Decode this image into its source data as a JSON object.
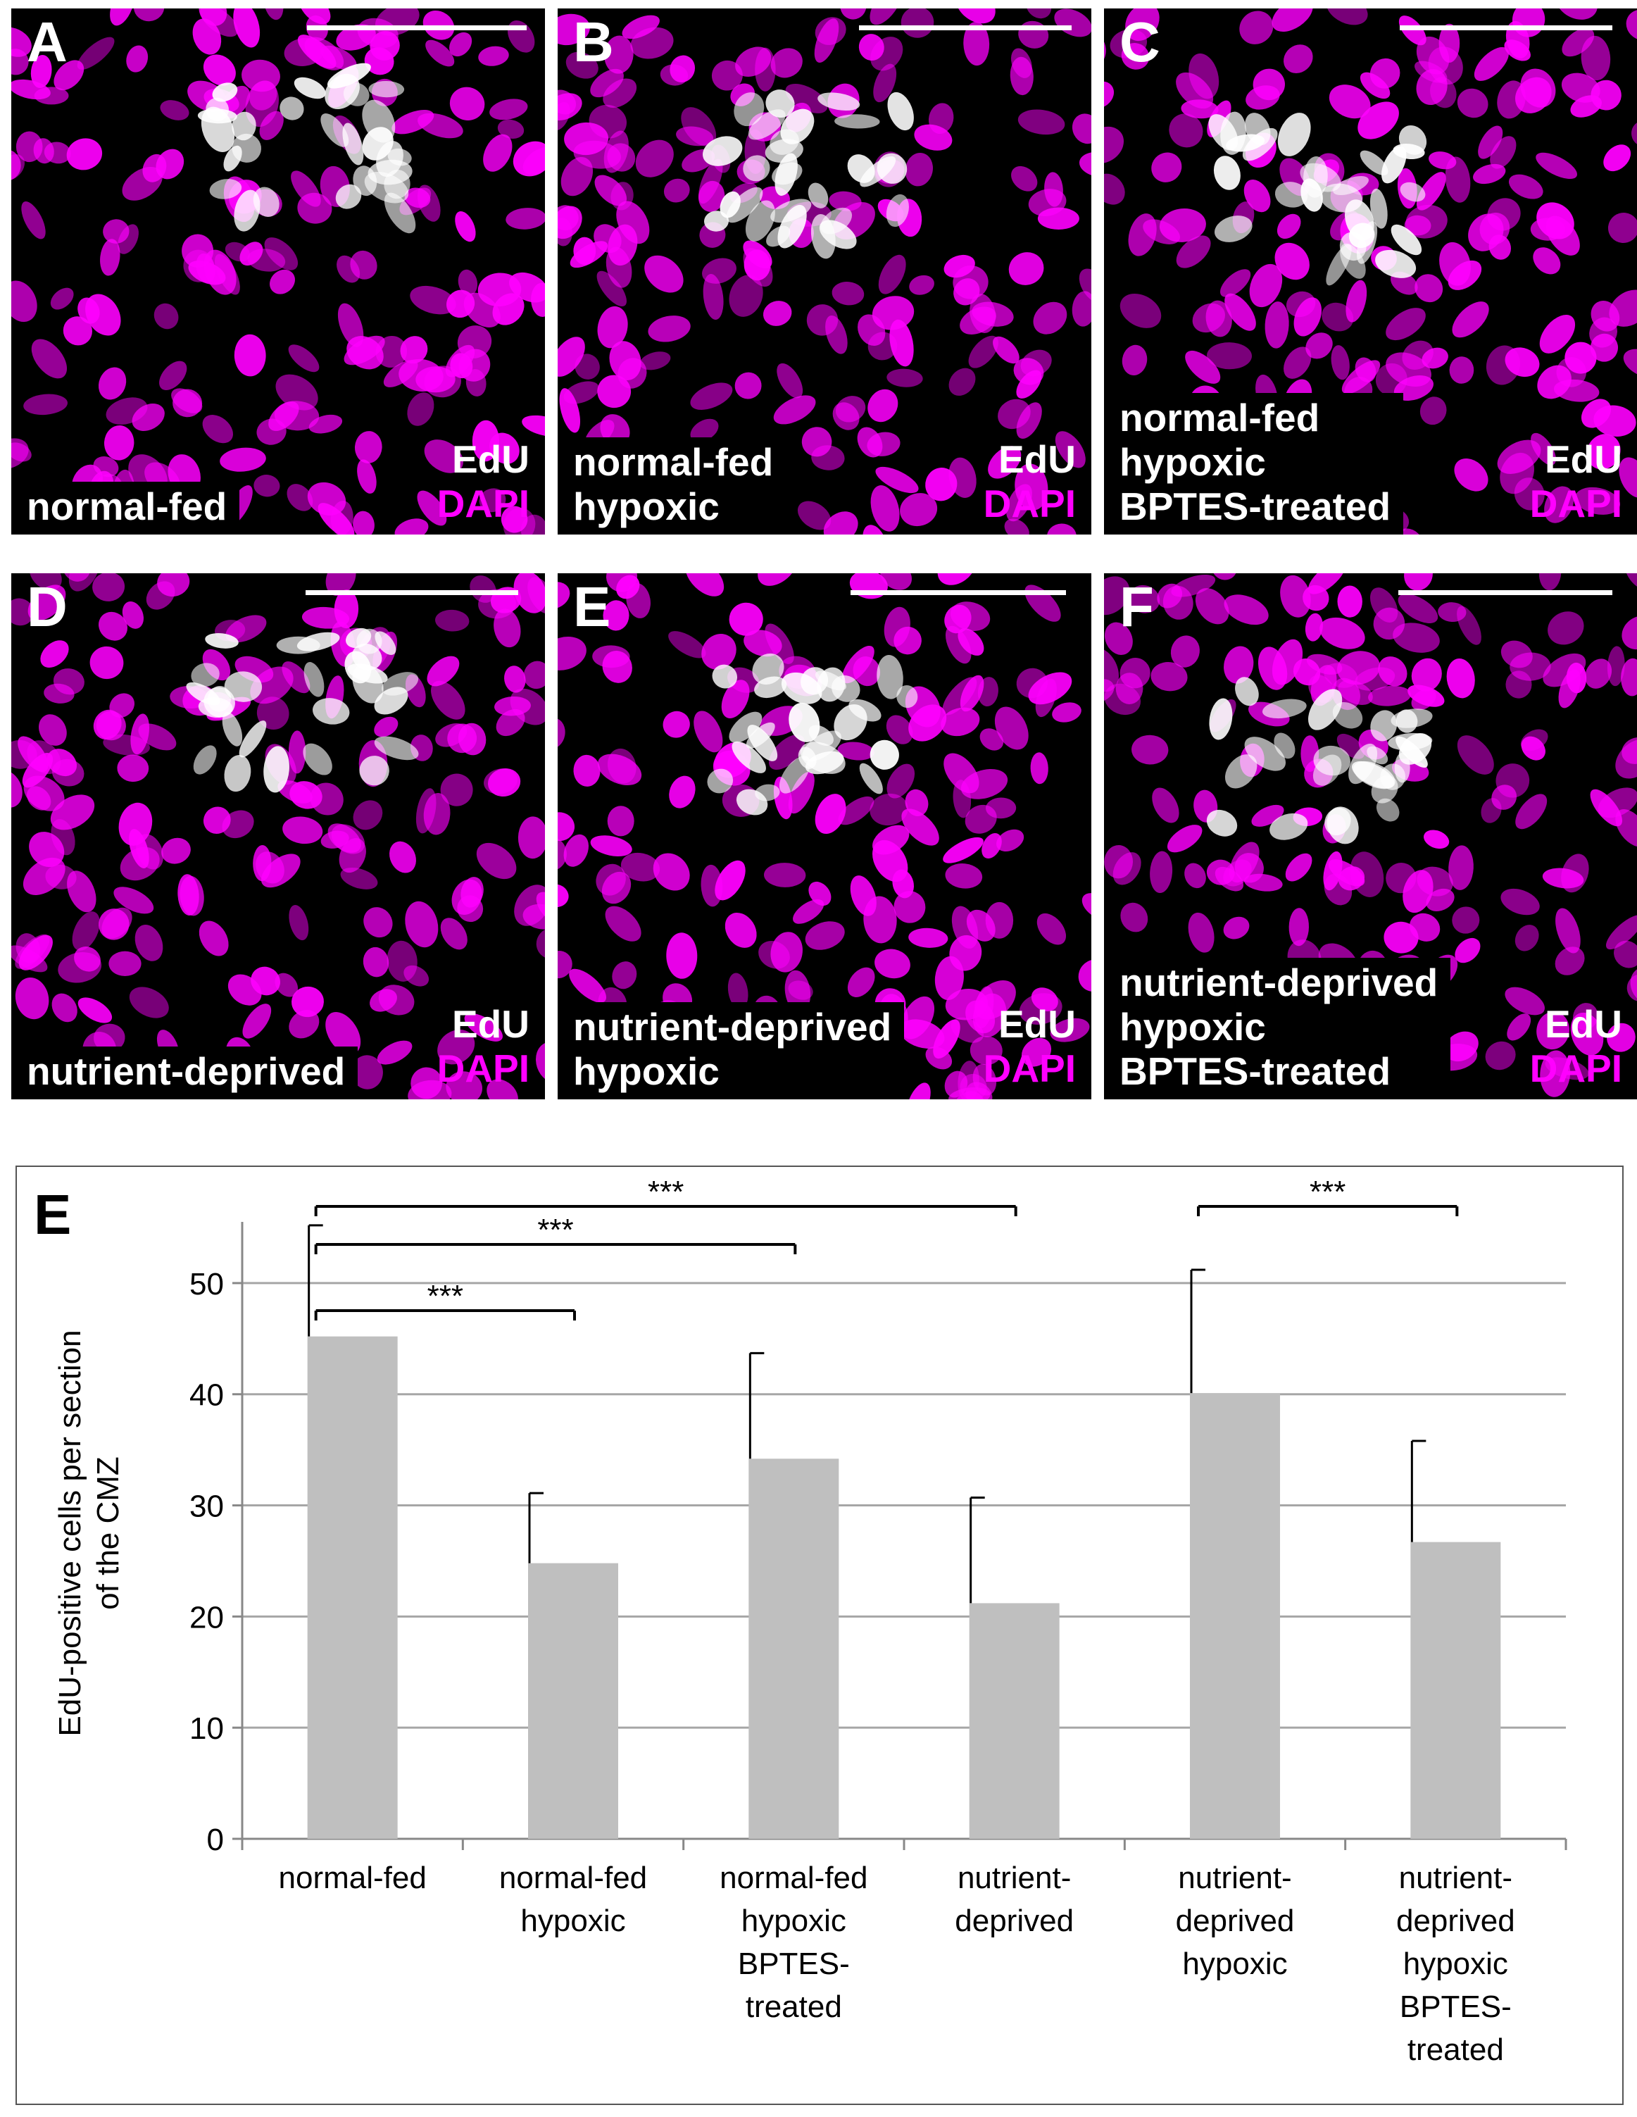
{
  "panels": [
    {
      "letter": "A",
      "condition": "normal-fed",
      "stain_top": "EdU",
      "stain_bottom": "DAPI"
    },
    {
      "letter": "B",
      "condition": "normal-fed\nhypoxic",
      "stain_top": "EdU",
      "stain_bottom": "DAPI"
    },
    {
      "letter": "C",
      "condition": "normal-fed\nhypoxic\nBPTES-treated",
      "stain_top": "EdU",
      "stain_bottom": "DAPI"
    },
    {
      "letter": "D",
      "condition": "nutrient-deprived",
      "stain_top": "EdU",
      "stain_bottom": "DAPI"
    },
    {
      "letter": "E",
      "condition": "nutrient-deprived\nhypoxic",
      "stain_top": "EdU",
      "stain_bottom": "DAPI"
    },
    {
      "letter": "F",
      "condition": "nutrient-deprived\nhypoxic\nBPTES-treated",
      "stain_top": "EdU",
      "stain_bottom": "DAPI"
    }
  ],
  "colors": {
    "dapi": "#ff00ff",
    "edu": "#ffffff",
    "bar": "#bfbfbf",
    "grid": "#a6a6a6"
  },
  "chart_data": {
    "type": "bar",
    "panel_letter": "E",
    "categories": [
      "normal-fed",
      "normal-fed\nhypoxic",
      "normal-fed\nhypoxic\nBPTES-\ntreated",
      "nutrient-\ndeprived",
      "nutrient-\ndeprived\nhypoxic",
      "nutrient-\ndeprived\nhypoxic\nBPTES-\ntreated"
    ],
    "values": [
      45.2,
      24.8,
      34.2,
      21.2,
      40.1,
      26.7
    ],
    "errors": [
      10.0,
      6.3,
      9.5,
      9.5,
      11.1,
      9.1
    ],
    "ylabel": "EdU-positive cells per section\nof the CMZ",
    "xlabel": "",
    "ylim": [
      0,
      55
    ],
    "yticks": [
      0,
      10,
      20,
      30,
      40,
      50
    ],
    "grid": true,
    "legend": "none",
    "significance": [
      {
        "from": 0,
        "to": 1,
        "label": "***"
      },
      {
        "from": 0,
        "to": 2,
        "label": "***"
      },
      {
        "from": 0,
        "to": 3,
        "label": "***"
      },
      {
        "from": 4,
        "to": 5,
        "label": "***"
      }
    ]
  }
}
